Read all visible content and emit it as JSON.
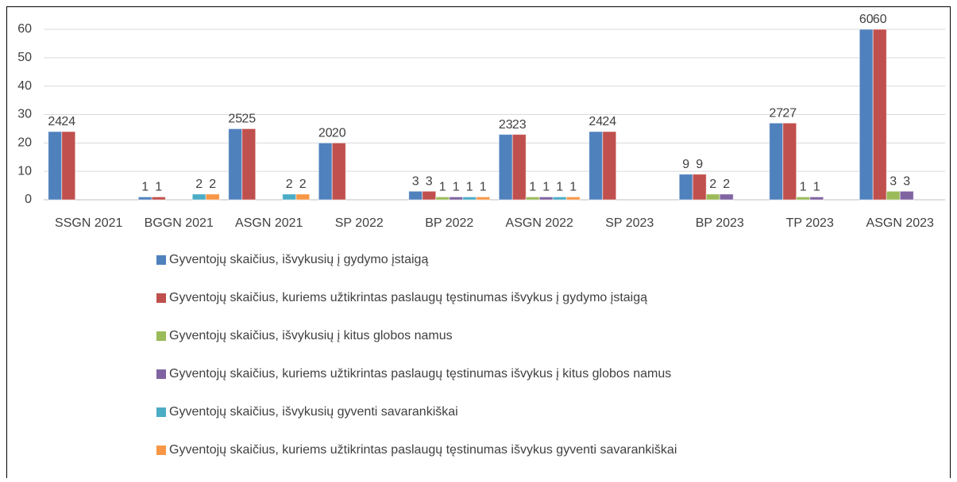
{
  "chart_data": {
    "type": "bar",
    "categories": [
      "SSGN 2021",
      "BGGN 2021",
      "ASGN 2021",
      "SP 2022",
      "BP 2022",
      "ASGN 2022",
      "SP 2023",
      "BP 2023",
      "TP 2023",
      "ASGN 2023"
    ],
    "series": [
      {
        "name": "Gyventojų skaičius, išvykusių į gydymo įstaigą",
        "color": "#4f81bd",
        "values": [
          24,
          1,
          25,
          20,
          3,
          23,
          24,
          9,
          27,
          60
        ]
      },
      {
        "name": "Gyventojų skaičius, kuriems užtikrintas paslaugų tęstinumas išvykus į gydymo įstaigą",
        "color": "#c0504d",
        "values": [
          24,
          1,
          25,
          20,
          3,
          23,
          24,
          9,
          27,
          60
        ]
      },
      {
        "name": "Gyventojų skaičius, išvykusių į kitus globos namus",
        "color": "#9bbb59",
        "values": [
          null,
          null,
          null,
          null,
          1,
          1,
          null,
          2,
          1,
          3
        ]
      },
      {
        "name": "Gyventojų skaičius, kuriems užtikrintas paslaugų tęstinumas išvykus į kitus globos namus",
        "color": "#8064a2",
        "values": [
          null,
          null,
          null,
          null,
          1,
          1,
          null,
          2,
          1,
          3
        ]
      },
      {
        "name": "Gyventojų skaičius, išvykusių gyventi savarankiškai",
        "color": "#4bacc6",
        "values": [
          null,
          2,
          2,
          null,
          1,
          1,
          null,
          null,
          null,
          null
        ]
      },
      {
        "name": "Gyventojų skaičius, kuriems užtikrintas paslaugų tęstinumas išvykus gyventi savarankiškai",
        "color": "#f79646",
        "values": [
          null,
          2,
          2,
          null,
          1,
          1,
          null,
          null,
          null,
          null
        ]
      }
    ],
    "ylim": [
      0,
      60
    ],
    "yticks": [
      0,
      10,
      20,
      30,
      40,
      50,
      60
    ],
    "grid": true,
    "legend": "bottom"
  }
}
